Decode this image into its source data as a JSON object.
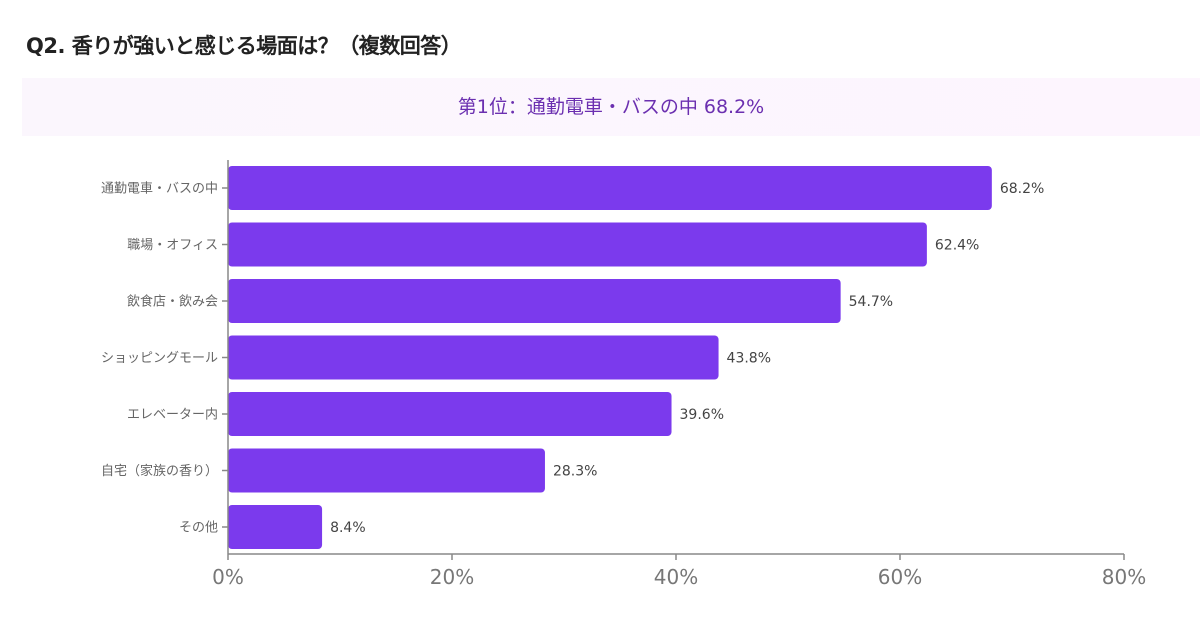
{
  "title": "Q2. 香りが強いと感じる場面は？（複数回答）",
  "banner": "第1位：通勤電車・バスの中 68.2%",
  "colors": {
    "bar": "#7b3aed",
    "title": "#222222",
    "banner_text": "#6b2fb0",
    "axis": "#888888"
  },
  "chart_data": {
    "type": "bar",
    "orientation": "horizontal",
    "categories": [
      "通勤電車・バスの中",
      "職場・オフィス",
      "飲食店・飲み会",
      "ショッピングモール",
      "エレベーター内",
      "自宅（家族の香り）",
      "その他"
    ],
    "values": [
      68.2,
      62.4,
      54.7,
      43.8,
      39.6,
      28.3,
      8.4
    ],
    "data_labels": [
      "68.2%",
      "62.4%",
      "54.7%",
      "43.8%",
      "39.6%",
      "28.3%",
      "8.4%"
    ],
    "xlim": [
      0,
      80
    ],
    "xticks": [
      0,
      20,
      40,
      60,
      80
    ],
    "xtick_labels": [
      "0%",
      "20%",
      "40%",
      "60%",
      "80%"
    ],
    "grid": false,
    "legend": "none"
  }
}
